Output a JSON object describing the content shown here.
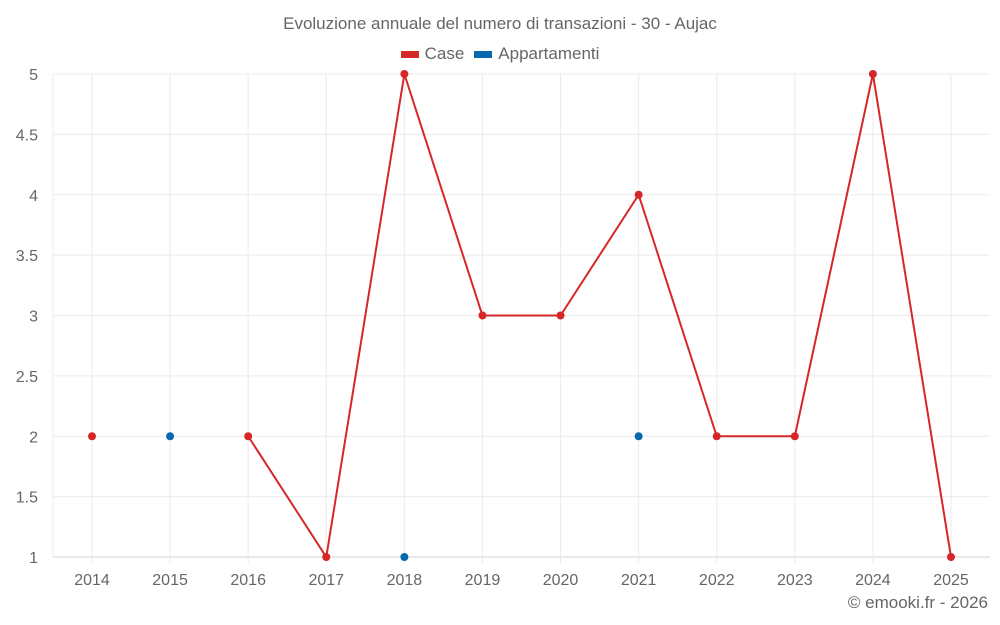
{
  "chart_data": {
    "type": "line",
    "title": "Evoluzione annuale del numero di transazioni - 30 - Aujac",
    "xlabel": "",
    "ylabel": "",
    "categories": [
      "2014",
      "2015",
      "2016",
      "2017",
      "2018",
      "2019",
      "2020",
      "2021",
      "2022",
      "2023",
      "2024",
      "2025"
    ],
    "series": [
      {
        "name": "Case",
        "color": "#d62728",
        "values": [
          2,
          null,
          2,
          1,
          5,
          3,
          3,
          4,
          2,
          2,
          5,
          1
        ]
      },
      {
        "name": "Appartamenti",
        "color": "#0868ac",
        "values": [
          null,
          2,
          null,
          null,
          1,
          null,
          null,
          2,
          null,
          null,
          null,
          null
        ]
      }
    ],
    "ylim": [
      1,
      5
    ],
    "yticks": [
      "1",
      "1.5",
      "2",
      "2.5",
      "3",
      "3.5",
      "4",
      "4.5",
      "5"
    ],
    "grid": true,
    "legend_position": "top"
  },
  "legend": {
    "items": [
      {
        "label": "Case",
        "color": "#d62728"
      },
      {
        "label": "Appartamenti",
        "color": "#0868ac"
      }
    ]
  },
  "footer": {
    "credit": "© emooki.fr - 2026"
  }
}
